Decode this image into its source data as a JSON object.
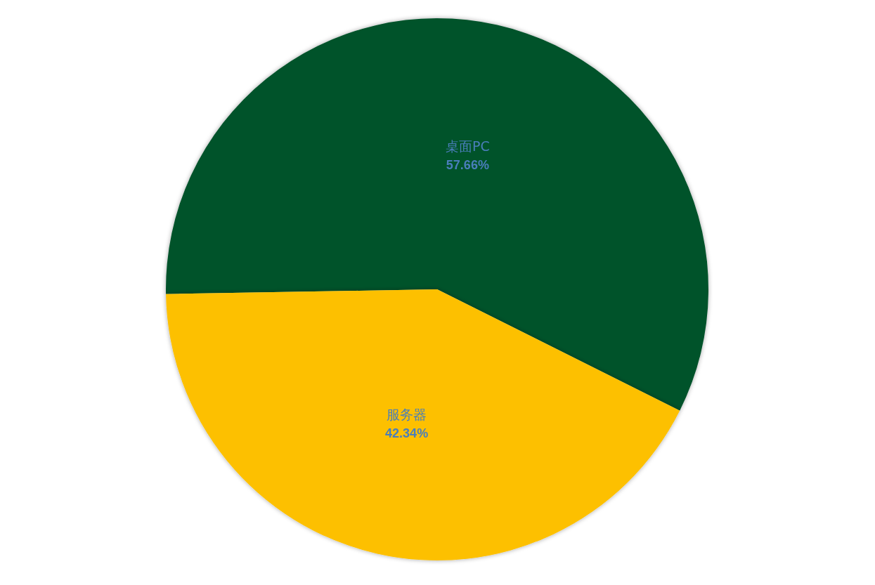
{
  "chart_data": {
    "type": "pie",
    "categories": [
      "桌面PC",
      "服务器"
    ],
    "values": [
      57.66,
      42.34
    ],
    "value_labels": [
      "57.66%",
      "42.34%"
    ],
    "colors": [
      "#06532c",
      "#fdc000"
    ],
    "legend": false
  }
}
